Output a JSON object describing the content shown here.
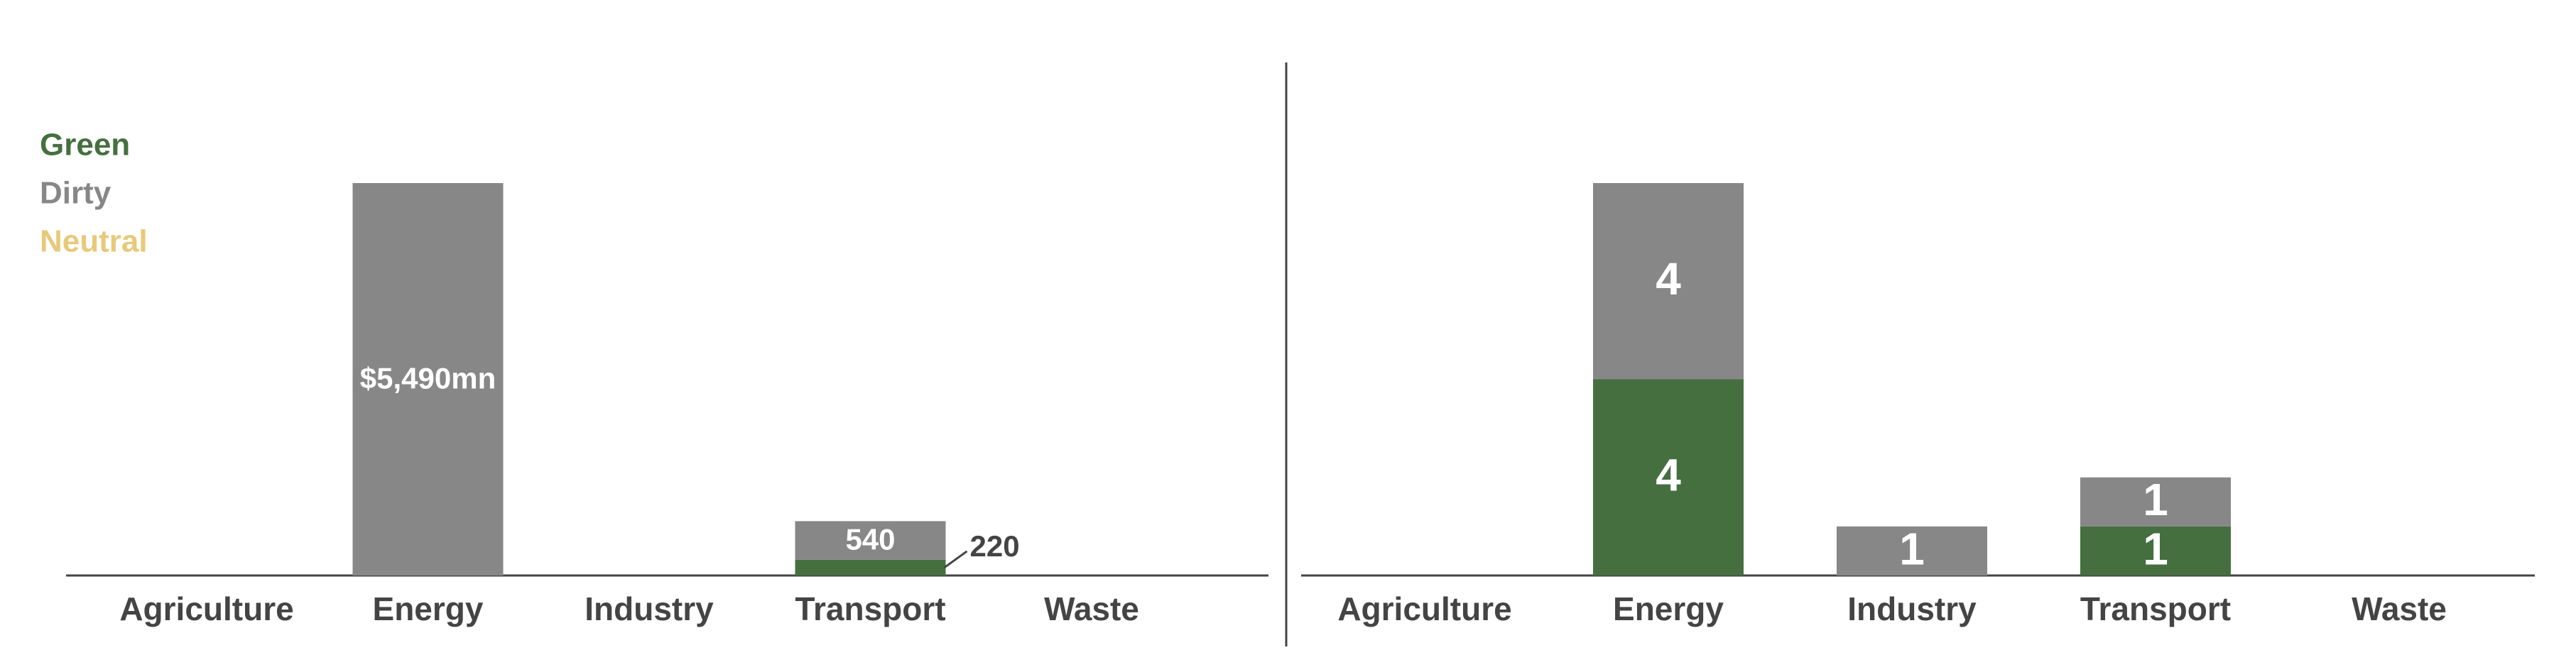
{
  "chart_data": [
    {
      "type": "bar",
      "stacked": true,
      "categories": [
        "Agriculture",
        "Energy",
        "Industry",
        "Transport",
        "Waste"
      ],
      "series": [
        {
          "name": "Green",
          "color": "#456f3f",
          "values": [
            null,
            null,
            null,
            220,
            null
          ]
        },
        {
          "name": "Dirty",
          "color": "#878787",
          "values": [
            null,
            5490,
            null,
            540,
            null
          ],
          "value_labels": [
            null,
            "$5,490mn",
            null,
            "540",
            null
          ]
        },
        {
          "name": "Neutral",
          "color": "#e8c97a",
          "values": [
            null,
            null,
            null,
            null,
            null
          ]
        }
      ]
    },
    {
      "type": "bar",
      "stacked": true,
      "categories": [
        "Agriculture",
        "Energy",
        "Industry",
        "Transport",
        "Waste"
      ],
      "series": [
        {
          "color": "#456f3f",
          "values": [
            null,
            4,
            null,
            1,
            null
          ]
        },
        {
          "color": "#878787",
          "values": [
            null,
            4,
            1,
            1,
            null
          ]
        }
      ]
    }
  ]
}
